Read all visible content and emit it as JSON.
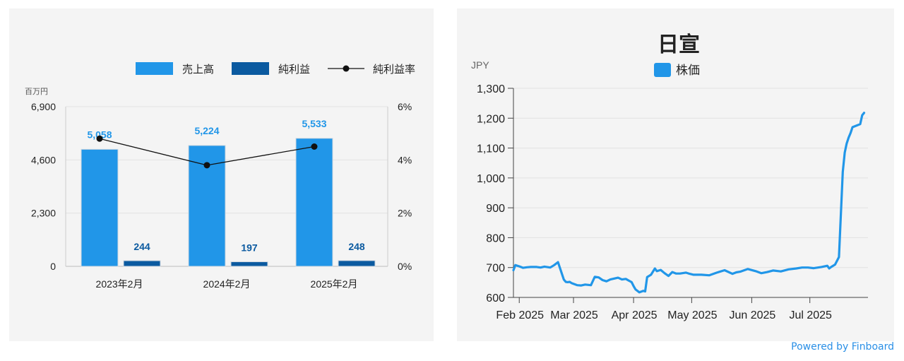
{
  "colors": {
    "sales": "#2196e8",
    "net_income": "#0b5aa0",
    "margin_line": "#111111",
    "stock_line": "#2196e8",
    "axis_text": "#222222",
    "grid": "#e2e2e2"
  },
  "footer": {
    "powered_by": "Powered by Finboard"
  },
  "chart_data": [
    {
      "type": "bar",
      "unit_label": "百万円",
      "legend": {
        "placement": "top-right",
        "items": [
          "売上高",
          "純利益",
          "純利益率"
        ]
      },
      "categories": [
        "2023年2月",
        "2024年2月",
        "2025年2月"
      ],
      "series": [
        {
          "name": "売上高",
          "type": "bar",
          "values": [
            5058,
            5224,
            5533
          ],
          "labels": [
            "5,058",
            "5,224",
            "5,533"
          ],
          "color": "#2196e8"
        },
        {
          "name": "純利益",
          "type": "bar",
          "values": [
            244,
            197,
            248
          ],
          "labels": [
            "244",
            "197",
            "248"
          ],
          "color": "#0b5aa0"
        },
        {
          "name": "純利益率",
          "type": "line",
          "axis": "right",
          "values": [
            4.8,
            3.8,
            4.5
          ],
          "color": "#111111"
        }
      ],
      "y_left": {
        "ticks": [
          0,
          2300,
          4600,
          6900
        ],
        "tick_labels": [
          "0",
          "2,300",
          "4,600",
          "6,900"
        ],
        "range": [
          0,
          6900
        ]
      },
      "y_right": {
        "ticks": [
          0,
          2,
          4,
          6
        ],
        "tick_labels": [
          "0%",
          "2%",
          "4%",
          "6%"
        ],
        "range": [
          0,
          6
        ]
      },
      "grid": true
    },
    {
      "type": "line",
      "title": "日宣",
      "ylabel": "JPY",
      "legend": {
        "placement": "top-center",
        "items": [
          "株価"
        ]
      },
      "y": {
        "ticks": [
          600,
          700,
          800,
          900,
          1000,
          1100,
          1200,
          1300
        ],
        "tick_labels": [
          "600",
          "700",
          "800",
          "900",
          "1,000",
          "1,100",
          "1,200",
          "1,300"
        ],
        "range": [
          600,
          1300
        ]
      },
      "x": {
        "range": [
          "2025-01-29",
          "2025-07-31"
        ],
        "ticks": [
          "2025-02-01",
          "2025-03-01",
          "2025-04-01",
          "2025-05-01",
          "2025-06-01",
          "2025-07-01"
        ],
        "tick_labels": [
          "Feb 2025",
          "Mar 2025",
          "Apr 2025",
          "May 2025",
          "Jun 2025",
          "Jul 2025"
        ]
      },
      "grid": true,
      "series": [
        {
          "name": "株価",
          "x": [
            "2025-01-29",
            "2025-01-30",
            "2025-01-31",
            "2025-02-01",
            "2025-02-03",
            "2025-02-05",
            "2025-02-07",
            "2025-02-10",
            "2025-02-12",
            "2025-02-14",
            "2025-02-17",
            "2025-02-19",
            "2025-02-21",
            "2025-02-24",
            "2025-02-25",
            "2025-02-26",
            "2025-02-27",
            "2025-02-28",
            "2025-03-03",
            "2025-03-05",
            "2025-03-07",
            "2025-03-10",
            "2025-03-12",
            "2025-03-14",
            "2025-03-16",
            "2025-03-17",
            "2025-03-18",
            "2025-03-20",
            "2025-03-24",
            "2025-03-26",
            "2025-03-28",
            "2025-03-31",
            "2025-04-01",
            "2025-04-02",
            "2025-04-04",
            "2025-04-06",
            "2025-04-07",
            "2025-04-08",
            "2025-04-10",
            "2025-04-12",
            "2025-04-13",
            "2025-04-15",
            "2025-04-17",
            "2025-04-19",
            "2025-04-21",
            "2025-04-23",
            "2025-04-25",
            "2025-04-28",
            "2025-04-30",
            "2025-05-02",
            "2025-05-06",
            "2025-05-10",
            "2025-05-14",
            "2025-05-18",
            "2025-05-22",
            "2025-05-24",
            "2025-05-26",
            "2025-05-30",
            "2025-06-03",
            "2025-06-06",
            "2025-06-09",
            "2025-06-12",
            "2025-06-16",
            "2025-06-20",
            "2025-06-24",
            "2025-06-27",
            "2025-06-30",
            "2025-07-03",
            "2025-07-07",
            "2025-07-10",
            "2025-07-11",
            "2025-07-12",
            "2025-07-14",
            "2025-07-16",
            "2025-07-18",
            "2025-07-19",
            "2025-07-20",
            "2025-07-21",
            "2025-07-22",
            "2025-07-23",
            "2025-07-25",
            "2025-07-27",
            "2025-07-28",
            "2025-07-29"
          ],
          "y": [
            691,
            708,
            706,
            704,
            699,
            701,
            702,
            702,
            700,
            703,
            700,
            708,
            718,
            660,
            652,
            651,
            652,
            648,
            641,
            640,
            643,
            641,
            669,
            667,
            658,
            656,
            654,
            660,
            666,
            660,
            662,
            651,
            638,
            627,
            617,
            622,
            620,
            668,
            676,
            697,
            688,
            692,
            681,
            672,
            685,
            680,
            680,
            683,
            679,
            676,
            676,
            674,
            683,
            691,
            679,
            684,
            686,
            695,
            688,
            681,
            685,
            690,
            687,
            694,
            697,
            700,
            700,
            698,
            702,
            706,
            697,
            702,
            710,
            735,
            1020,
            1085,
            1115,
            1135,
            1150,
            1170,
            1175,
            1180,
            1210,
            1218
          ],
          "color": "#2196e8"
        }
      ]
    }
  ]
}
